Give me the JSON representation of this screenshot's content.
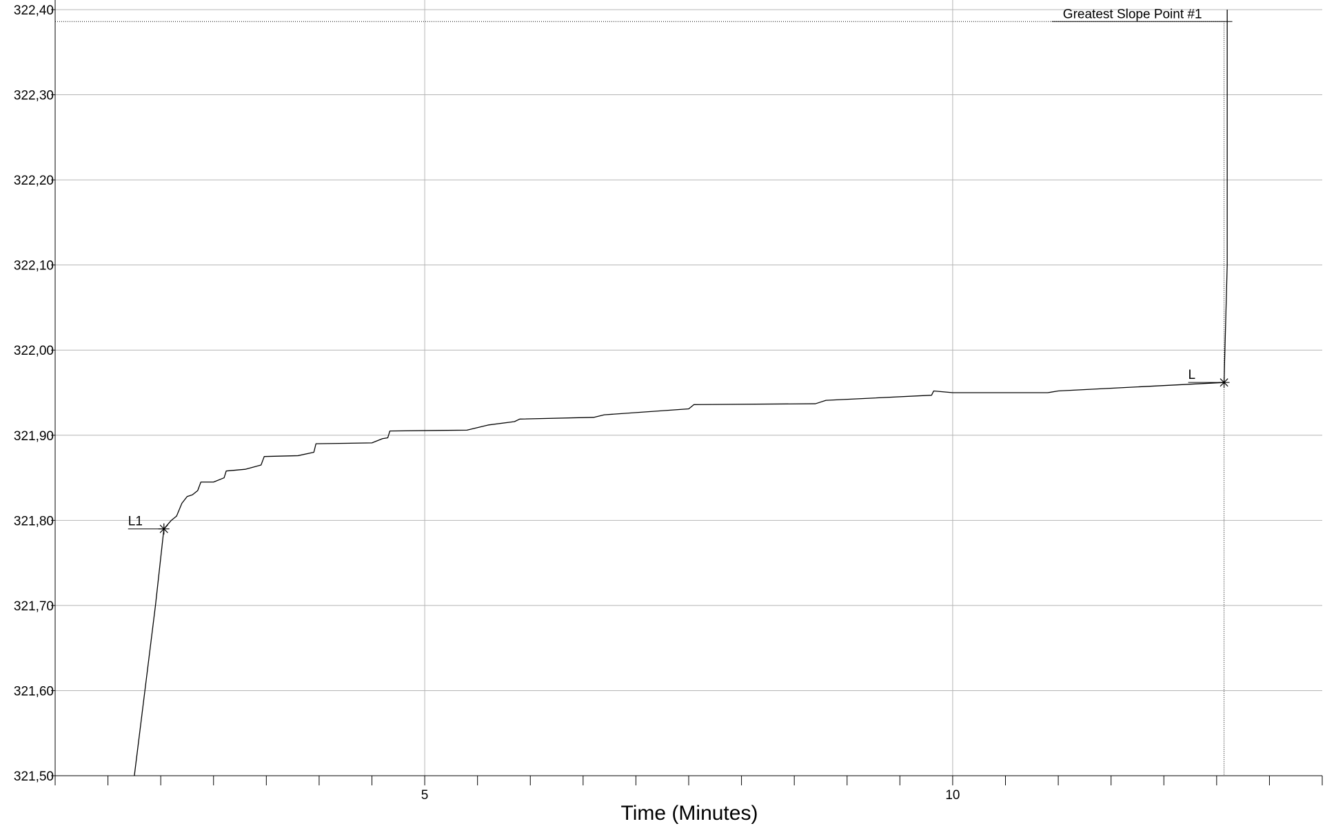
{
  "chart_data": {
    "type": "line",
    "title": "",
    "xlabel": "Time (Minutes)",
    "ylabel": "",
    "xlim": [
      1.5,
      13.5
    ],
    "ylim": [
      321.5,
      322.4
    ],
    "grid": true,
    "x_ticks": [
      {
        "value": 5,
        "label": "5"
      },
      {
        "value": 10,
        "label": "10"
      }
    ],
    "x_minor_step": 0.5,
    "y_ticks": [
      {
        "value": 321.5,
        "label": "321,50"
      },
      {
        "value": 321.6,
        "label": "321,60"
      },
      {
        "value": 321.7,
        "label": "321,70"
      },
      {
        "value": 321.8,
        "label": "321,80"
      },
      {
        "value": 321.9,
        "label": "321,90"
      },
      {
        "value": 322.0,
        "label": "322,00"
      },
      {
        "value": 322.1,
        "label": "322,10"
      },
      {
        "value": 322.2,
        "label": "322,20"
      },
      {
        "value": 322.3,
        "label": "322,30"
      },
      {
        "value": 322.4,
        "label": "322,40"
      }
    ],
    "series": [
      {
        "color": "#000000",
        "points": [
          [
            2.25,
            321.5
          ],
          [
            2.35,
            321.6
          ],
          [
            2.45,
            321.7
          ],
          [
            2.53,
            321.79
          ],
          [
            2.6,
            321.8
          ],
          [
            2.65,
            321.805
          ],
          [
            2.7,
            321.82
          ],
          [
            2.75,
            321.828
          ],
          [
            2.8,
            321.83
          ],
          [
            2.85,
            321.835
          ],
          [
            2.88,
            321.845
          ],
          [
            3.0,
            321.845
          ],
          [
            3.1,
            321.85
          ],
          [
            3.12,
            321.858
          ],
          [
            3.3,
            321.86
          ],
          [
            3.45,
            321.865
          ],
          [
            3.48,
            321.875
          ],
          [
            3.8,
            321.876
          ],
          [
            3.95,
            321.88
          ],
          [
            3.97,
            321.89
          ],
          [
            4.5,
            321.891
          ],
          [
            4.6,
            321.896
          ],
          [
            4.65,
            321.897
          ],
          [
            4.67,
            321.905
          ],
          [
            5.4,
            321.906
          ],
          [
            5.6,
            321.912
          ],
          [
            5.85,
            321.916
          ],
          [
            5.9,
            321.919
          ],
          [
            6.6,
            321.921
          ],
          [
            6.7,
            321.924
          ],
          [
            7.5,
            321.931
          ],
          [
            7.55,
            321.936
          ],
          [
            8.7,
            321.937
          ],
          [
            8.8,
            321.941
          ],
          [
            9.8,
            321.947
          ],
          [
            9.82,
            321.952
          ],
          [
            10.0,
            321.95
          ],
          [
            10.9,
            321.95
          ],
          [
            11.0,
            321.952
          ],
          [
            12.57,
            321.962
          ],
          [
            12.6,
            322.1
          ],
          [
            12.6,
            322.38
          ],
          [
            12.6,
            322.4
          ]
        ]
      }
    ],
    "markers": [
      {
        "label": "L1",
        "x": 2.53,
        "y": 321.79
      },
      {
        "label": "L",
        "x": 12.57,
        "y": 321.962
      }
    ],
    "greatest_slope": {
      "label": "Greatest Slope Point #1",
      "x": 12.57,
      "y": 322.386
    }
  }
}
